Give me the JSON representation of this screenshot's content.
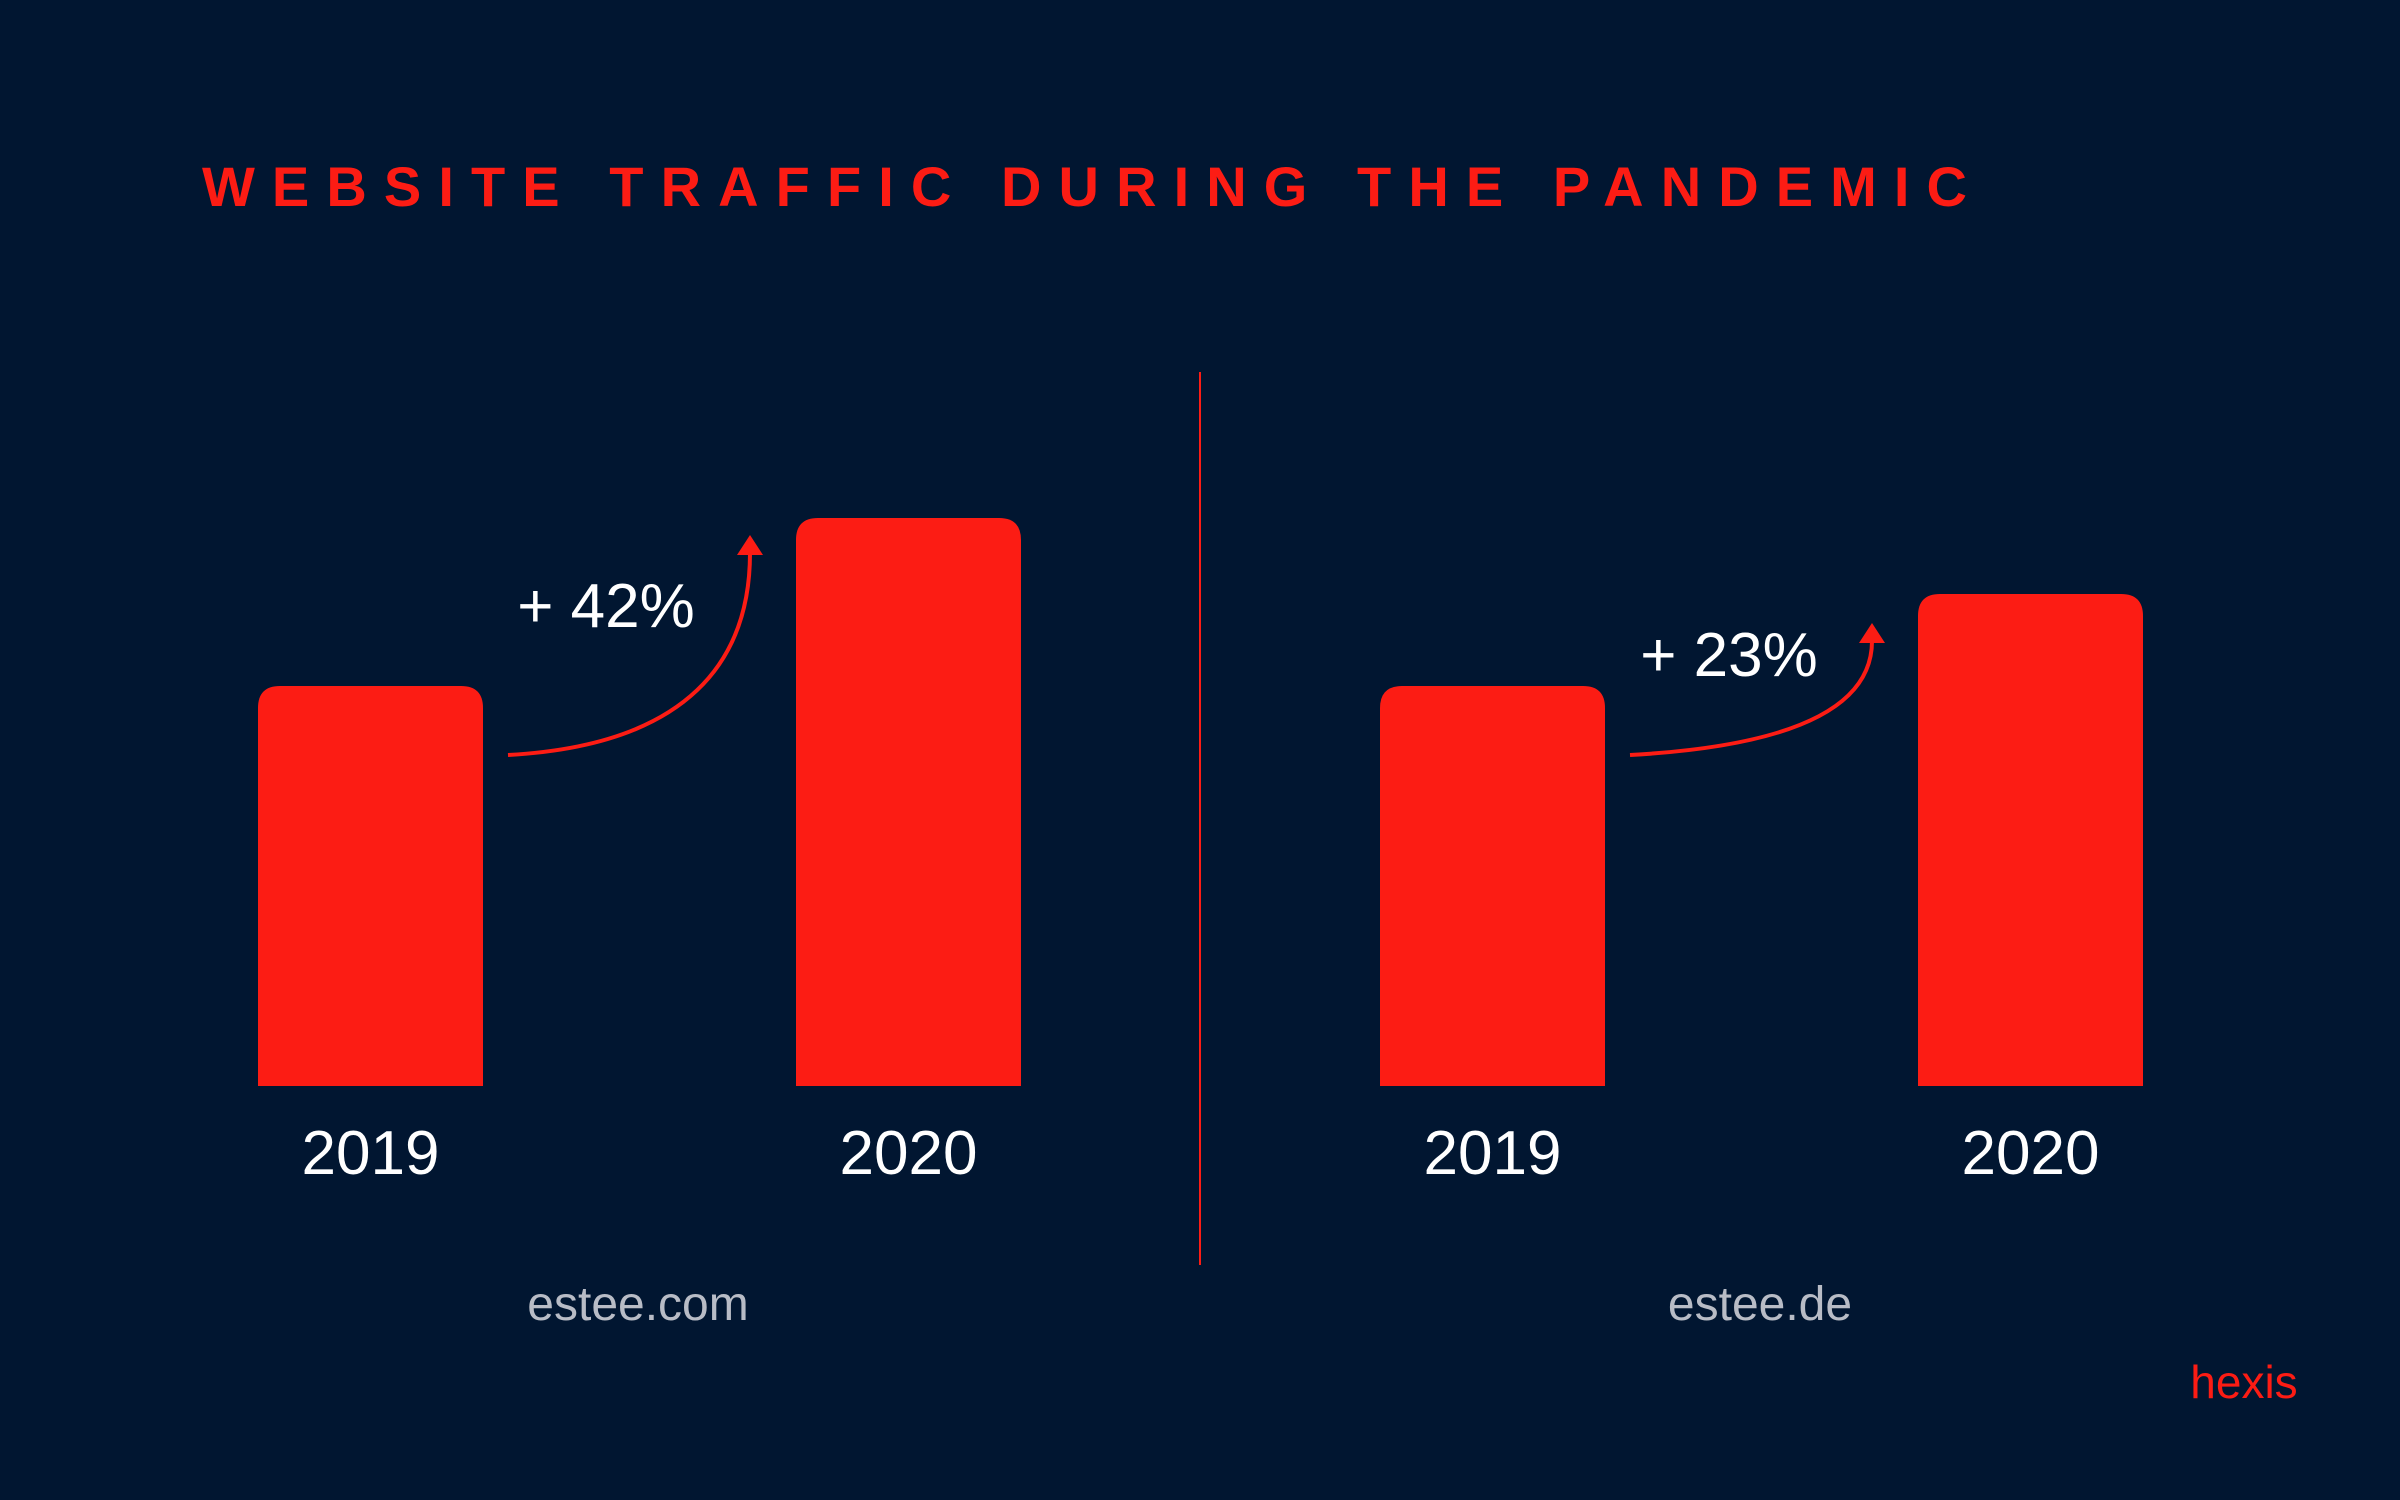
{
  "title": "WEBSITE TRAFFIC DURING THE PANDEMIC",
  "colors": {
    "background": "#011631",
    "accent": "#fc1c14",
    "text": "#ffffff",
    "muted": "#b8bcc6"
  },
  "brand": "hexis",
  "chart_data": [
    {
      "type": "bar",
      "label": "estee.com",
      "categories": [
        "2019",
        "2020"
      ],
      "values": [
        100,
        142
      ],
      "annotation": "+ 42%",
      "grid": false
    },
    {
      "type": "bar",
      "label": "estee.de",
      "categories": [
        "2019",
        "2020"
      ],
      "values": [
        100,
        123
      ],
      "annotation": "+ 23%",
      "grid": false
    }
  ]
}
